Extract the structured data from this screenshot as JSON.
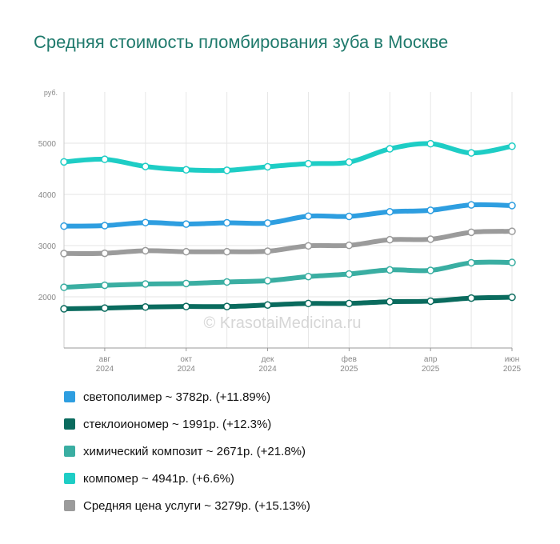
{
  "title": "Средняя стоимость пломбирования зуба в Москве",
  "watermark": "© KrasotaiMedicina.ru",
  "legend": [
    {
      "text": "светополимер ~ 3782р. (+11.89%)",
      "color": "#2e9ee0"
    },
    {
      "text": "стеклоиономер ~ 1991р. (+12.3%)",
      "color": "#0a6b5e"
    },
    {
      "text": "химический композит ~ 2671р. (+21.8%)",
      "color": "#3aaea2"
    },
    {
      "text": "компомер ~ 4941р. (+6.6%)",
      "color": "#1ecdc5"
    },
    {
      "text": "Средняя цена услуги ~ 3279р. (+15.13%)",
      "color": "#9b9b9b"
    }
  ],
  "chart_data": {
    "type": "line",
    "ylabel": "руб.",
    "ylim": [
      1000,
      6000
    ],
    "yticks": [
      2000,
      3000,
      4000,
      5000
    ],
    "grid": true,
    "x_ticks": [
      {
        "index": 1,
        "month": "авг",
        "year": "2024"
      },
      {
        "index": 3,
        "month": "окт",
        "year": "2024"
      },
      {
        "index": 5,
        "month": "дек",
        "year": "2024"
      },
      {
        "index": 7,
        "month": "фев",
        "year": "2025"
      },
      {
        "index": 9,
        "month": "апр",
        "year": "2025"
      },
      {
        "index": 11,
        "month": "июн",
        "year": "2025"
      }
    ],
    "x": [
      "2024-07",
      "2024-08",
      "2024-09",
      "2024-10",
      "2024-11",
      "2024-12",
      "2025-01",
      "2025-02",
      "2025-03",
      "2025-04",
      "2025-05",
      "2025-06"
    ],
    "series": [
      {
        "name": "компомер",
        "color": "#1ecdc5",
        "values": [
          4635,
          4685,
          4545,
          4480,
          4470,
          4540,
          4600,
          4630,
          4890,
          4990,
          4810,
          4941
        ]
      },
      {
        "name": "светополимер",
        "color": "#2e9ee0",
        "values": [
          3380,
          3390,
          3450,
          3420,
          3445,
          3440,
          3575,
          3570,
          3660,
          3690,
          3795,
          3782
        ]
      },
      {
        "name": "Средняя цена услуги",
        "color": "#9b9b9b",
        "values": [
          2845,
          2850,
          2900,
          2880,
          2880,
          2890,
          2995,
          3005,
          3115,
          3125,
          3260,
          3279
        ]
      },
      {
        "name": "химический композит",
        "color": "#3aaea2",
        "values": [
          2185,
          2225,
          2250,
          2260,
          2290,
          2315,
          2395,
          2445,
          2525,
          2515,
          2665,
          2671
        ]
      },
      {
        "name": "стеклоиономер",
        "color": "#0a6b5e",
        "values": [
          1765,
          1780,
          1800,
          1810,
          1810,
          1840,
          1870,
          1870,
          1905,
          1915,
          1975,
          1991
        ]
      }
    ]
  }
}
